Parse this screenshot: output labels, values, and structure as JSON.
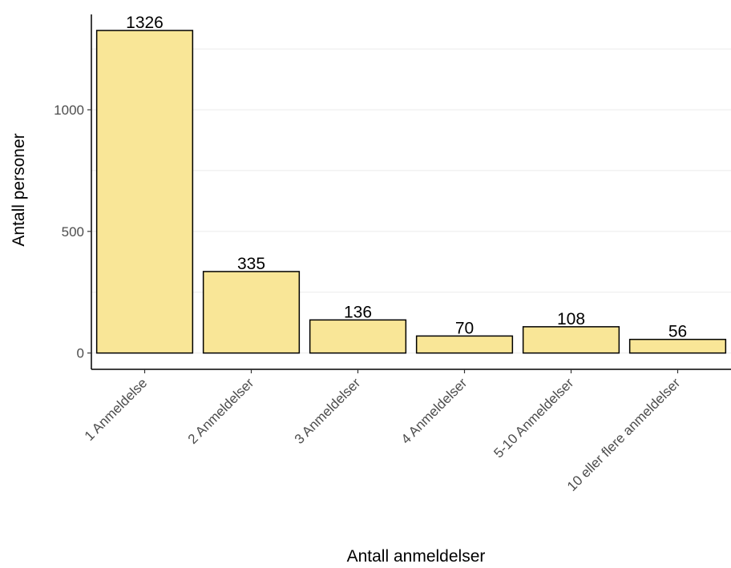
{
  "chart_data": {
    "type": "bar",
    "title": "",
    "xlabel": "Antall anmeldelser",
    "ylabel": "Antall personer",
    "categories": [
      "1 Anmeldelse",
      "2 Anmeldelser",
      "3 Anmeldelser",
      "4 Anmeldelser",
      "5-10 Anmeldelser",
      "10 eller flere anmeldelser"
    ],
    "values": [
      1326,
      335,
      136,
      70,
      108,
      56
    ],
    "data_labels": [
      "1326",
      "335",
      "136",
      "70",
      "108",
      "56"
    ],
    "y_ticks": [
      0,
      500,
      1000
    ],
    "y_tick_labels": [
      "0",
      "500",
      "1000"
    ],
    "ylim": [
      -67,
      1392
    ],
    "grid": true,
    "legend": "none",
    "colors": {
      "bar_fill": "#f9e697",
      "bar_stroke": "#000000",
      "grid": "#ebebeb",
      "axis": "#000000",
      "tick_text": "#4d4d4d"
    }
  }
}
